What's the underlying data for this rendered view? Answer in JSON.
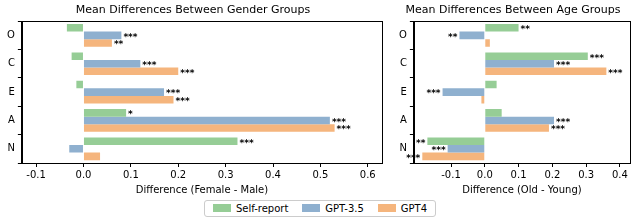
{
  "chart_data": [
    {
      "type": "bar",
      "orientation": "horizontal",
      "title": "Mean Differences Between Gender Groups",
      "x_label": "Difference (Female - Male)",
      "categories": [
        "O",
        "C",
        "E",
        "A",
        "N"
      ],
      "series": [
        {
          "name": "Self-report",
          "color": "#96cd96",
          "values": [
            -0.035,
            -0.025,
            -0.015,
            0.09,
            0.325
          ],
          "significance": [
            null,
            null,
            null,
            "*",
            "***"
          ]
        },
        {
          "name": "GPT-3.5",
          "color": "#8fb0cf",
          "values": [
            0.08,
            0.12,
            0.17,
            0.52,
            -0.03
          ],
          "significance": [
            "***",
            "***",
            "***",
            "***",
            null
          ]
        },
        {
          "name": "GPT4",
          "color": "#f5b57d",
          "values": [
            0.06,
            0.2,
            0.19,
            0.53,
            0.035
          ],
          "significance": [
            "**",
            "***",
            "***",
            "***",
            null
          ]
        }
      ],
      "xlim": [
        -0.13,
        0.63
      ],
      "xticks": [
        -0.1,
        {
          "value": 0,
          "label": "0.0"
        },
        0.1,
        0.2,
        0.3,
        0.4,
        0.5,
        0.6
      ],
      "grid": false,
      "legend": "bottom"
    },
    {
      "type": "bar",
      "orientation": "horizontal",
      "title": "Mean Differences Between Age Groups",
      "x_label": "Difference (Old - Young)",
      "categories": [
        "O",
        "C",
        "E",
        "A",
        "N"
      ],
      "series": [
        {
          "name": "Self-report",
          "color": "#96cd96",
          "values": [
            0.1,
            0.305,
            0.035,
            0.05,
            -0.17
          ],
          "significance": [
            "**",
            "***",
            null,
            null,
            "**"
          ]
        },
        {
          "name": "GPT-3.5",
          "color": "#8fb0cf",
          "values": [
            -0.075,
            0.205,
            -0.125,
            0.205,
            -0.11
          ],
          "significance": [
            "**",
            "***",
            "***",
            "***",
            "***"
          ]
        },
        {
          "name": "GPT4",
          "color": "#f5b57d",
          "values": [
            0.015,
            0.36,
            -0.01,
            0.19,
            -0.185
          ],
          "significance": [
            null,
            "***",
            null,
            "***",
            "***"
          ]
        }
      ],
      "xlim": [
        -0.21,
        0.43
      ],
      "xticks": [
        -0.1,
        {
          "value": 0,
          "label": "0.0"
        },
        0.1,
        0.2,
        0.3,
        0.4
      ],
      "grid": false
    }
  ]
}
